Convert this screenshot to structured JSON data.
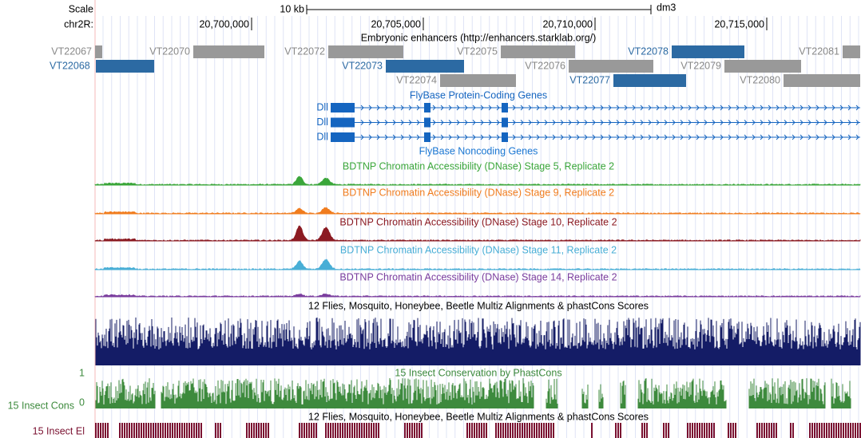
{
  "ruler": {
    "scale": "Scale",
    "scale_label": "10 kb",
    "assembly": "dm3",
    "chrom": "chr2R:",
    "positions": [
      "20,700,000",
      "20,705,000",
      "20,710,000",
      "20,715,000"
    ]
  },
  "enhancers": {
    "title": "Embryonic enhancers (http://enhancers.starklab.org/)",
    "gray": "#999999",
    "blue": "#2c6aa3",
    "items": [
      {
        "label": "VT22067",
        "highlight": false
      },
      {
        "label": "VT22070",
        "highlight": false
      },
      {
        "label": "VT22072",
        "highlight": false
      },
      {
        "label": "VT22075",
        "highlight": false
      },
      {
        "label": "VT22078",
        "highlight": true
      },
      {
        "label": "VT22081",
        "highlight": false
      },
      {
        "label": "VT22068",
        "highlight": true
      },
      {
        "label": "VT22073",
        "highlight": true
      },
      {
        "label": "VT22076",
        "highlight": false
      },
      {
        "label": "VT22079",
        "highlight": false
      },
      {
        "label": "VT22074",
        "highlight": false
      },
      {
        "label": "VT22077",
        "highlight": true
      },
      {
        "label": "VT22080",
        "highlight": false
      }
    ]
  },
  "genes": {
    "title": "FlyBase Protein-Coding Genes",
    "color": "#1565c0",
    "names": [
      "Dll",
      "Dll",
      "Dll"
    ]
  },
  "noncoding": {
    "title": "FlyBase Noncoding Genes"
  },
  "dnase": [
    {
      "title": "BDTNP Chromatin Accessibility (DNase) Stage 5, Replicate 2",
      "color": "#3aa63a"
    },
    {
      "title": "BDTNP Chromatin Accessibility (DNase) Stage 9, Replicate 2",
      "color": "#f07c1e"
    },
    {
      "title": "BDTNP Chromatin Accessibility (DNase) Stage 10, Replicate 2",
      "color": "#8b1a22"
    },
    {
      "title": "BDTNP Chromatin Accessibility (DNase) Stage 11, Replicate 2",
      "color": "#48aed6"
    },
    {
      "title": "BDTNP Chromatin Accessibility (DNase) Stage 14, Replicate 2",
      "color": "#7a3d9e"
    }
  ],
  "multiz": {
    "title": "12 Flies, Mosquito, Honeybee, Beetle Multiz Alignments & phastCons Scores",
    "color": "#141c66"
  },
  "cons": {
    "title": "15 Insect Conservation by PhastCons",
    "name": "15 Insect Cons",
    "max_label": "1",
    "min_label": "0",
    "color": "#3d8a3d"
  },
  "elements": {
    "title": "12 Flies, Mosquito, Honeybee, Beetle Multiz Alignments & phastCons Scores",
    "name": "15 Insect El",
    "color": "#7a1030"
  }
}
